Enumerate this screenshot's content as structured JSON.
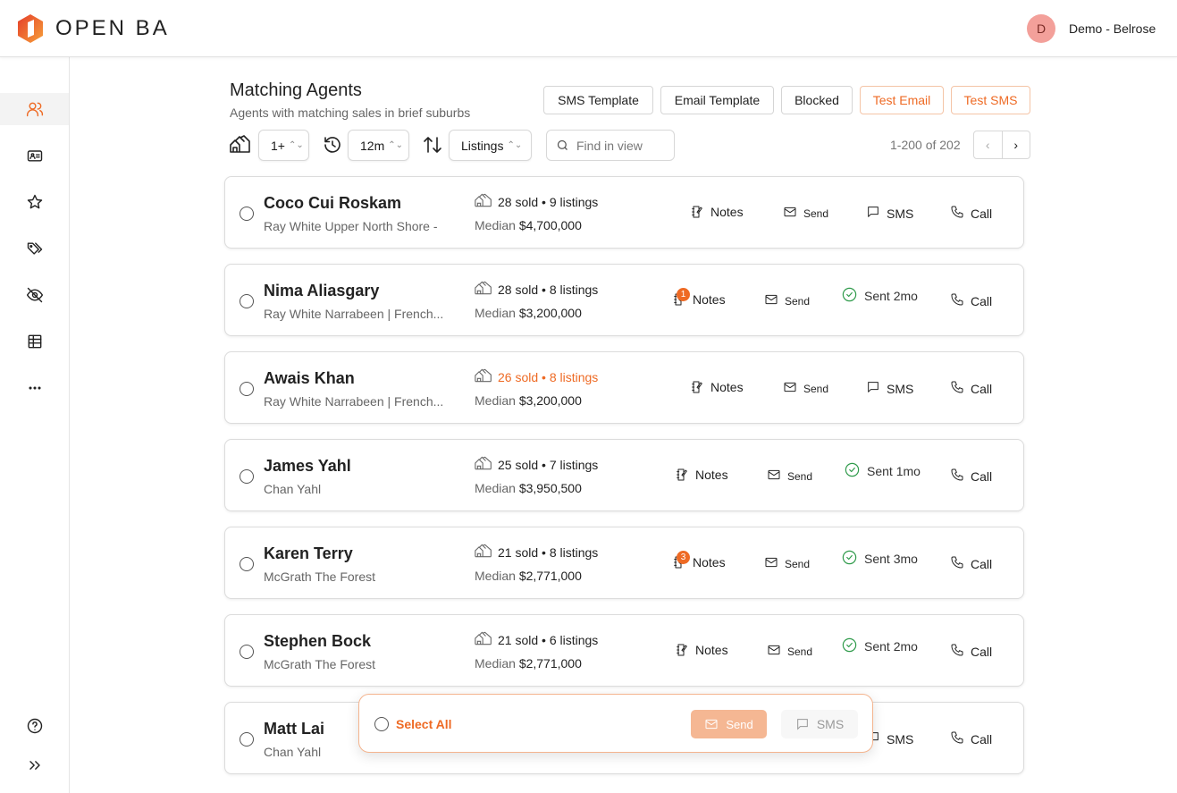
{
  "header": {
    "brand": "OPEN BA",
    "avatar_initial": "D",
    "user": "Demo - Belrose"
  },
  "sidebar": {
    "items": [
      {
        "icon": "users-icon",
        "active": true
      },
      {
        "icon": "contact-card-icon"
      },
      {
        "icon": "star-icon"
      },
      {
        "icon": "tags-icon"
      },
      {
        "icon": "eye-off-icon"
      },
      {
        "icon": "table-icon"
      },
      {
        "icon": "more-icon"
      },
      {
        "icon": "help-icon"
      },
      {
        "icon": "expand-icon"
      }
    ]
  },
  "page": {
    "title": "Matching Agents",
    "subtitle": "Agents with matching sales in brief suburbs"
  },
  "toolbar": {
    "sms_template": "SMS Template",
    "email_template": "Email Template",
    "blocked": "Blocked",
    "test_email": "Test Email",
    "test_sms": "Test SMS"
  },
  "filters": {
    "sales": "1+",
    "period": "12m",
    "sort": "Listings",
    "search_placeholder": "Find in view",
    "pagination": "1-200 of 202"
  },
  "labels": {
    "median": "Median",
    "notes": "Notes",
    "send": "Send",
    "sms": "SMS",
    "call": "Call"
  },
  "agents": [
    {
      "name": "Coco Cui Roskam",
      "agency": "Ray White Upper North Shore -",
      "stats": "28 sold • 9 listings",
      "median": "$4,700,000",
      "notes_badge": null,
      "sent": null
    },
    {
      "name": "Nima Aliasgary",
      "agency": "Ray White Narrabeen | French...",
      "stats": "28 sold • 8 listings",
      "median": "$3,200,000",
      "notes_badge": "1",
      "sent": "Sent 2mo"
    },
    {
      "name": "Awais Khan",
      "agency": "Ray White Narrabeen | French...",
      "stats": "26 sold • 8 listings",
      "median": "$3,200,000",
      "notes_badge": null,
      "sent": null,
      "highlight": true
    },
    {
      "name": "James Yahl",
      "agency": "Chan Yahl",
      "stats": "25 sold • 7 listings",
      "median": "$3,950,500",
      "notes_badge": null,
      "sent": "Sent 1mo"
    },
    {
      "name": "Karen Terry",
      "agency": "McGrath The Forest",
      "stats": "21 sold • 8 listings",
      "median": "$2,771,000",
      "notes_badge": "3",
      "sent": "Sent 3mo"
    },
    {
      "name": "Stephen Bock",
      "agency": "McGrath The Forest",
      "stats": "21 sold • 6 listings",
      "median": "$2,771,000",
      "notes_badge": null,
      "sent": "Sent 2mo"
    },
    {
      "name": "Matt Lai",
      "agency": "Chan Yahl",
      "stats": "",
      "median": "",
      "notes_badge": null,
      "sent": null
    }
  ],
  "bulk": {
    "select_all": "Select All",
    "send": "Send",
    "sms": "SMS"
  },
  "colors": {
    "accent": "#ee6a24",
    "success": "#2e9a4a"
  }
}
